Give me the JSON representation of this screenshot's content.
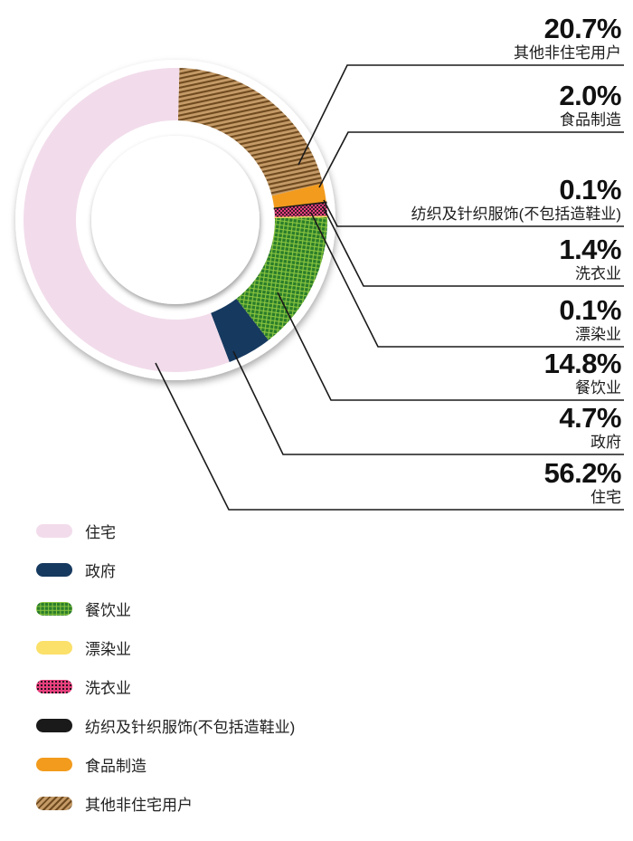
{
  "chart_data": {
    "type": "pie",
    "donut": true,
    "units": "%",
    "start_angle_deg": 1.5,
    "direction": "clockwise",
    "line_color": "#1a1a1a",
    "segments": [
      {
        "name": "other-non-residential-users",
        "label": "其他非住宅用户",
        "value": 20.7,
        "display": "20.7%",
        "color": "#C49A67",
        "pattern": "stripes",
        "accent": "#6F4A1F"
      },
      {
        "name": "food-manufacturing",
        "label": "食品制造",
        "value": 2.0,
        "display": "2.0%",
        "color": "#F29B1D",
        "pattern": "solid",
        "accent": ""
      },
      {
        "name": "textiles-knitted-apparel",
        "label": "纺织及针织服饰(不包括造鞋业)",
        "value": 0.1,
        "display": "0.1%",
        "color": "#1A1A1A",
        "pattern": "solid",
        "accent": ""
      },
      {
        "name": "laundry",
        "label": "洗衣业",
        "value": 1.4,
        "display": "1.4%",
        "color": "#E8417E",
        "pattern": "dots",
        "accent": "#20121a"
      },
      {
        "name": "bleaching-dyeing",
        "label": "漂染业",
        "value": 0.1,
        "display": "0.1%",
        "color": "#FBE06A",
        "pattern": "solid",
        "accent": ""
      },
      {
        "name": "catering",
        "label": "餐饮业",
        "value": 14.8,
        "display": "14.8%",
        "color": "#2B7D2B",
        "pattern": "grid",
        "accent": "#8CC63F"
      },
      {
        "name": "government",
        "label": "政府",
        "value": 4.7,
        "display": "4.7%",
        "color": "#16395F",
        "pattern": "solid",
        "accent": ""
      },
      {
        "name": "residential",
        "label": "住宅",
        "value": 56.2,
        "display": "56.2%",
        "color": "#F2DCEB",
        "pattern": "solid",
        "accent": ""
      }
    ],
    "legend": [
      {
        "label": "住宅"
      },
      {
        "label": "政府"
      },
      {
        "label": "餐饮业"
      },
      {
        "label": "漂染业"
      },
      {
        "label": "洗衣业"
      },
      {
        "label": "纺织及针织服饰(不包括造鞋业)"
      },
      {
        "label": "食品制造"
      },
      {
        "label": "其他非住宅用户"
      }
    ]
  }
}
